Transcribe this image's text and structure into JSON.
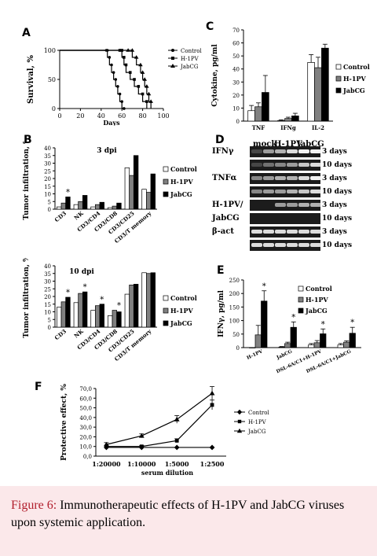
{
  "panel_labels": {
    "A": "A",
    "B": "B",
    "C": "C",
    "D": "D",
    "E": "E",
    "F": "F"
  },
  "caption": {
    "figure": "Figure 6:",
    "text": "Immunotherapeutic effects of H-1PV and JabCG viruses upon systemic application."
  },
  "chart_data": [
    {
      "id": "A",
      "type": "line",
      "ylabel": "Survival, %",
      "xlabel": "Days",
      "xticks": [
        0,
        20,
        40,
        60,
        80,
        100
      ],
      "yticks": [
        0,
        50,
        100
      ],
      "xlim": [
        0,
        100
      ],
      "ylim": [
        0,
        100
      ],
      "series": [
        {
          "name": "Control",
          "marker": "circle",
          "x": [
            0,
            45,
            46,
            48,
            50,
            52,
            54,
            56,
            58,
            60,
            62,
            62
          ],
          "y": [
            100,
            100,
            88,
            75,
            62,
            50,
            38,
            25,
            12,
            0,
            0,
            0
          ]
        },
        {
          "name": "H-1PV",
          "marker": "square",
          "x": [
            0,
            58,
            60,
            62,
            64,
            68,
            72,
            76,
            80,
            84
          ],
          "y": [
            100,
            100,
            88,
            75,
            62,
            50,
            38,
            25,
            12,
            0
          ]
        },
        {
          "name": "JabCG",
          "marker": "triangle",
          "x": [
            0,
            66,
            70,
            74,
            78,
            80,
            82,
            84,
            86,
            88
          ],
          "y": [
            100,
            100,
            88,
            75,
            62,
            50,
            38,
            25,
            12,
            0
          ]
        }
      ]
    },
    {
      "id": "C",
      "type": "bar",
      "ylabel": "Cytokine, pg/ml",
      "categories": [
        "TNF",
        "IFNg",
        "IL-2"
      ],
      "ylim": [
        0,
        70
      ],
      "yticks": [
        0,
        10,
        20,
        30,
        40,
        50,
        60,
        70
      ],
      "series": [
        {
          "name": "Control",
          "color": "#ffffff",
          "values": [
            8,
            0.5,
            45
          ],
          "err": [
            4,
            0.5,
            6
          ]
        },
        {
          "name": "H-1PV",
          "color": "#808080",
          "values": [
            11,
            2,
            41
          ],
          "err": [
            3,
            1,
            8
          ]
        },
        {
          "name": "JabCG",
          "color": "#000000",
          "values": [
            22,
            4,
            56
          ],
          "err": [
            13,
            2,
            3
          ]
        }
      ]
    },
    {
      "id": "B1",
      "type": "bar",
      "title": "3 dpi",
      "ylabel": "Tumor infiltration, %",
      "categories": [
        "CD3",
        "NK",
        "CD3/CD4",
        "CD3/CD8",
        "CD3/CD25",
        "CD3/T memory"
      ],
      "ylim": [
        0,
        40
      ],
      "yticks": [
        0,
        5,
        10,
        15,
        20,
        25,
        30,
        35,
        40
      ],
      "star_after": [
        0
      ],
      "series": [
        {
          "name": "Control",
          "color": "#ffffff",
          "values": [
            1.5,
            3,
            1.5,
            1,
            27,
            13
          ]
        },
        {
          "name": "H-1PV",
          "color": "#808080",
          "values": [
            4,
            5,
            3,
            2,
            22,
            11
          ]
        },
        {
          "name": "JabCG",
          "color": "#000000",
          "values": [
            8,
            9,
            4.5,
            4,
            35,
            23
          ]
        }
      ]
    },
    {
      "id": "B2",
      "type": "bar",
      "title": "10 dpi",
      "ylabel": "Tumor infiltration, %",
      "categories": [
        "CD3",
        "NK",
        "CD3/CD4",
        "CD3/CD8",
        "CD3/CD25",
        "CD3/T memory"
      ],
      "ylim": [
        0,
        40
      ],
      "yticks": [
        0,
        5,
        10,
        15,
        20,
        25,
        30,
        35,
        40
      ],
      "star_after": [
        0,
        1,
        2,
        3
      ],
      "series": [
        {
          "name": "Control",
          "color": "#ffffff",
          "values": [
            13,
            16,
            11,
            7.5,
            21.5,
            35.5
          ]
        },
        {
          "name": "H-1PV",
          "color": "#808080",
          "values": [
            16.5,
            22,
            14,
            11,
            27.5,
            35
          ]
        },
        {
          "name": "JabCG",
          "color": "#000000",
          "values": [
            19.5,
            23,
            15,
            10,
            28,
            35.5
          ]
        }
      ]
    },
    {
      "id": "E",
      "type": "bar",
      "ylabel": "IFNγ, pg/ml",
      "categories": [
        "H-1PV",
        "JabCG",
        "DSL-6A/C1+H-1PV",
        "DSL-6A/C1+JabCG"
      ],
      "ylim": [
        0,
        250
      ],
      "yticks": [
        0,
        50,
        100,
        150,
        200,
        250
      ],
      "star_after": [
        0,
        1,
        2,
        3
      ],
      "series": [
        {
          "name": "Control",
          "color": "#ffffff",
          "values": [
            0,
            2,
            10,
            10
          ],
          "err": [
            0,
            2,
            5,
            5
          ]
        },
        {
          "name": "H-1PV",
          "color": "#808080",
          "values": [
            47,
            15,
            18,
            20
          ],
          "err": [
            35,
            5,
            8,
            5
          ]
        },
        {
          "name": "JabCG",
          "color": "#000000",
          "values": [
            172,
            75,
            51,
            53
          ],
          "err": [
            38,
            20,
            18,
            22
          ]
        }
      ]
    },
    {
      "id": "F",
      "type": "line",
      "ylabel": "Protective effect, %",
      "xlabel": "serum dilution",
      "categories": [
        "1:20000",
        "1:10000",
        "1:5000",
        "1:2500"
      ],
      "ylim": [
        0,
        70
      ],
      "yticks": [
        "0,0",
        "10,0",
        "20,0",
        "30,0",
        "40,0",
        "50,0",
        "60,0",
        "70,0"
      ],
      "series": [
        {
          "name": "Control",
          "marker": "diamond",
          "values": [
            9,
            9,
            9,
            9
          ],
          "err": [
            0,
            0,
            0,
            0
          ]
        },
        {
          "name": "H-1PV",
          "marker": "square",
          "values": [
            10,
            10,
            16,
            53
          ],
          "err": [
            1,
            1,
            2,
            5
          ]
        },
        {
          "name": "JabCG",
          "marker": "triangle",
          "values": [
            12,
            21,
            38,
            65
          ],
          "err": [
            2,
            2,
            4,
            7
          ]
        }
      ]
    }
  ],
  "gel": {
    "columns": [
      "mock",
      "H-1PV",
      "JabCG"
    ],
    "rows": [
      {
        "gene": "IFNγ",
        "time": "3 days",
        "bands": [
          0.2,
          0.6,
          0.7,
          0.9,
          1.0,
          1.0
        ]
      },
      {
        "gene": "",
        "time": "10 days",
        "bands": [
          0.2,
          0.4,
          0.5,
          0.6,
          0.8,
          0.9
        ]
      },
      {
        "gene": "TNFα",
        "time": "3 days",
        "bands": [
          0.5,
          0.6,
          0.7,
          0.7,
          0.9,
          1.0
        ]
      },
      {
        "gene": "",
        "time": "10 days",
        "bands": [
          0.5,
          0.6,
          0.6,
          0.7,
          0.8,
          0.9
        ]
      },
      {
        "gene": "H-1PV/",
        "time": "3 days",
        "bands": [
          0.0,
          0.0,
          0.6,
          0.6,
          0.7,
          0.7
        ]
      },
      {
        "gene": "JabCG",
        "time": "10 days",
        "bands": [
          0.0,
          0.0,
          0.0,
          0.0,
          0.0,
          0.0
        ]
      },
      {
        "gene": "β-act",
        "time": "3 days",
        "bands": [
          0.9,
          0.9,
          0.9,
          0.9,
          0.9,
          0.9
        ]
      },
      {
        "gene": "",
        "time": "10 days",
        "bands": [
          0.9,
          0.9,
          0.9,
          0.9,
          0.9,
          0.9
        ]
      }
    ]
  }
}
